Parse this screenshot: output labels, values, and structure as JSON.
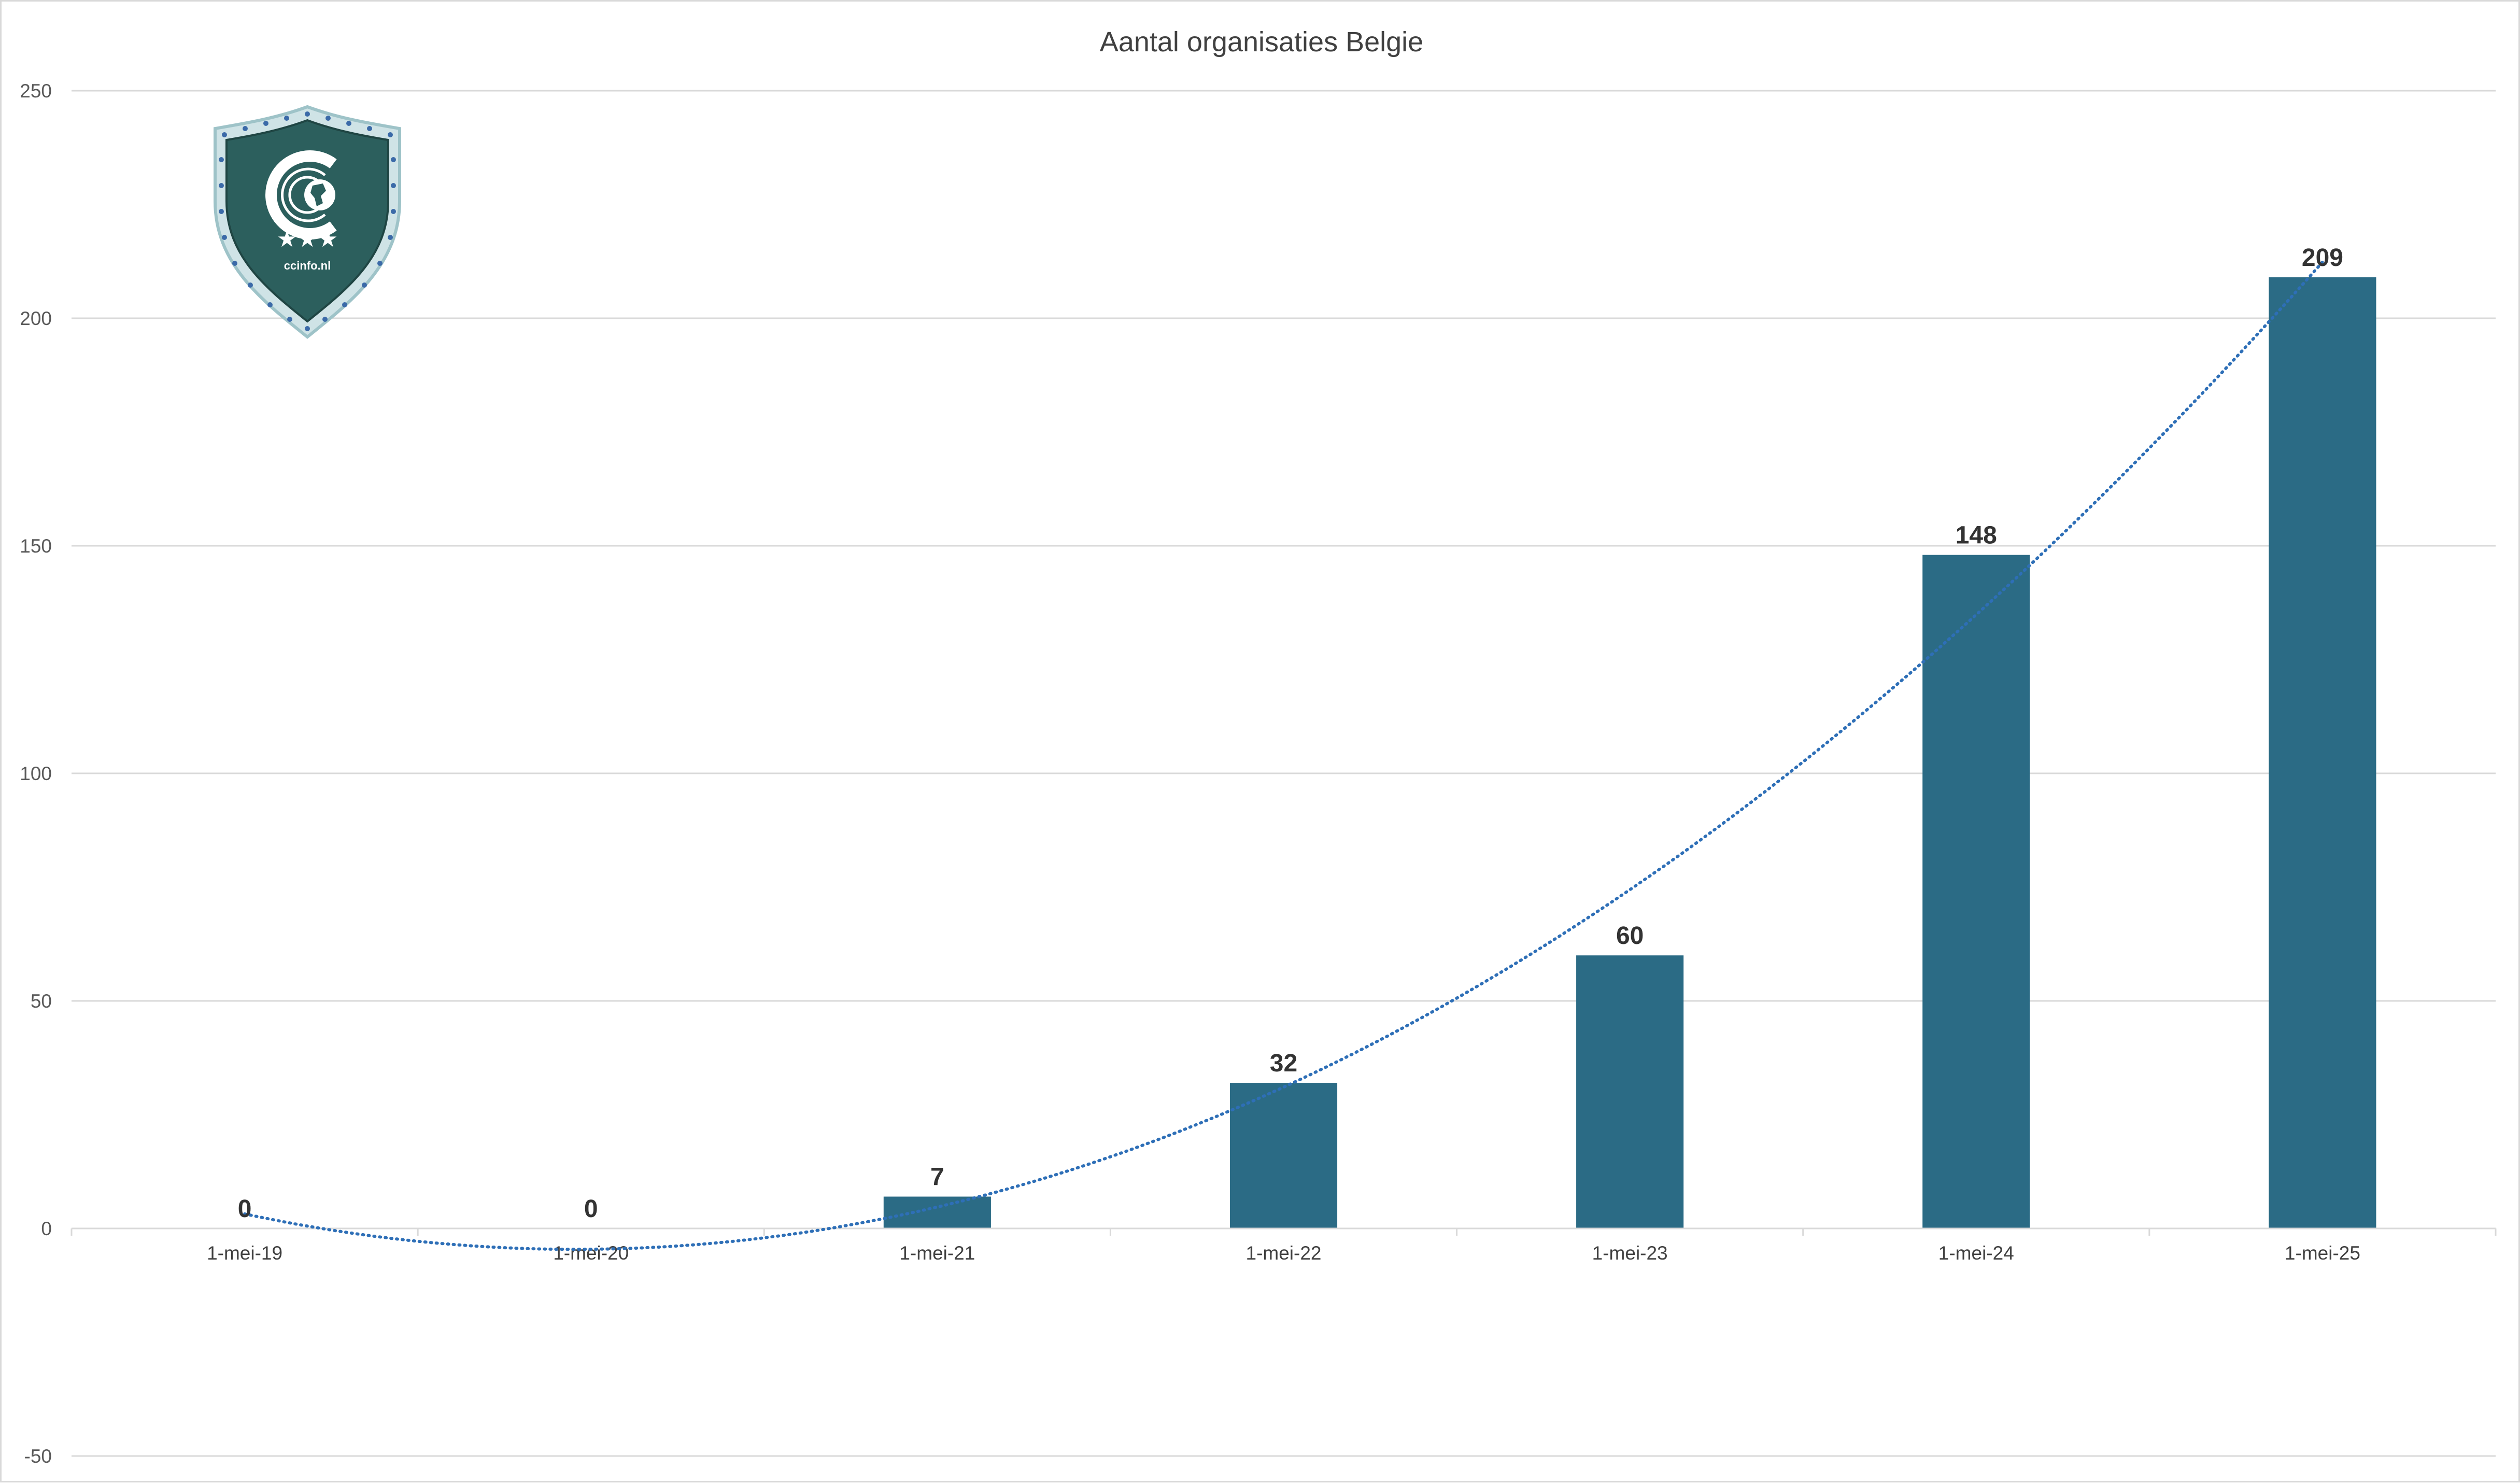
{
  "chart_data": {
    "type": "bar",
    "title": "Aantal organisaties Belgie",
    "categories": [
      "1-mei-19",
      "1-mei-20",
      "1-mei-21",
      "1-mei-22",
      "1-mei-23",
      "1-mei-24",
      "1-mei-25"
    ],
    "values": [
      0,
      0,
      7,
      32,
      60,
      148,
      209
    ],
    "data_labels": [
      "0",
      "0",
      "7",
      "32",
      "60",
      "148",
      "209"
    ],
    "ylim": [
      -50,
      250
    ],
    "y_ticks": [
      -50,
      0,
      50,
      100,
      150,
      200,
      250
    ],
    "gridlines": true,
    "legend": "none",
    "trendline": {
      "type": "polynomial",
      "style": "dotted",
      "color": "#2e6fb7"
    },
    "colors": {
      "bar": "#2b6b85",
      "grid": "#d9d9d9",
      "trendline": "#2e6fb7"
    }
  },
  "logo": {
    "name": "shield-logo",
    "text": "ccinfo.nl",
    "colors": {
      "fill": "#2c5f5d",
      "rim": "#9ec3c8",
      "dots": "#3b6aa8"
    }
  }
}
